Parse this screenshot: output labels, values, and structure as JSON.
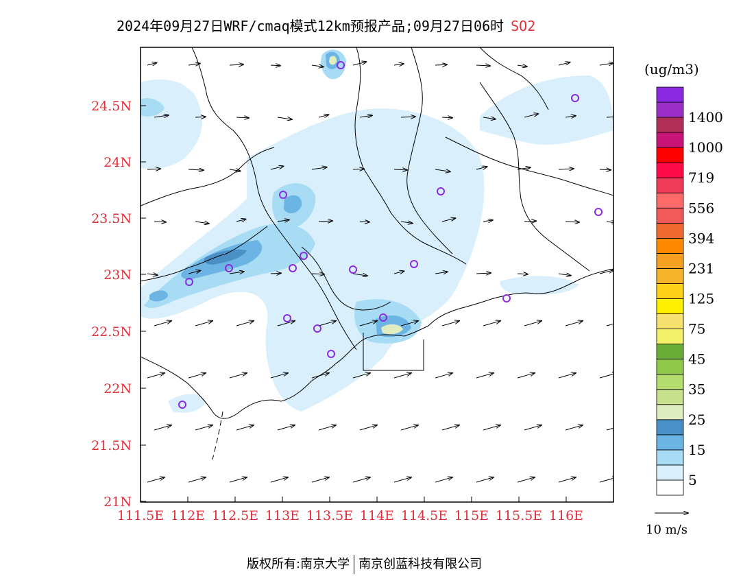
{
  "title": {
    "text": "2024年09月27日WRF/cmaq模式12km预报产品;09月27日06时",
    "species": "SO2"
  },
  "colors": {
    "axis_label": "#e0303a",
    "species": "#e0303a",
    "station": "#8a2be2",
    "boundary": "#000000"
  },
  "axes": {
    "y_ticks": [
      "24.5N",
      "24N",
      "23.5N",
      "23N",
      "22.5N",
      "22N",
      "21.5N",
      "21N"
    ],
    "x_ticks": [
      "111.5E",
      "112E",
      "112.5E",
      "113E",
      "113.5E",
      "114E",
      "114.5E",
      "115E",
      "115.5E",
      "116E"
    ]
  },
  "colorbar": {
    "unit": "(ug/m3)",
    "colors": [
      "#ffffff",
      "#d9effb",
      "#a8dcf5",
      "#6bb4e4",
      "#4a8fc6",
      "#e0edc0",
      "#c6e08c",
      "#b5dc6e",
      "#8fc84a",
      "#6aac38",
      "#f0f06a",
      "#f5e070",
      "#fff000",
      "#ffd21a",
      "#f5b52a",
      "#f5a020",
      "#ff8a00",
      "#f06a30",
      "#f05a5a",
      "#ff6a6a",
      "#f03a5a",
      "#ff0a4a",
      "#ff0000",
      "#c81478",
      "#b0305a",
      "#9b30c8",
      "#8a28e0"
    ],
    "labels": [
      "5",
      "15",
      "25",
      "35",
      "45",
      "75",
      "125",
      "231",
      "394",
      "556",
      "719",
      "1000",
      "1400"
    ]
  },
  "wind_legend": {
    "label": "10 m/s"
  },
  "footer": {
    "copyright": "版权所有:南京大学",
    "company": "南京创蓝科技有限公司"
  }
}
